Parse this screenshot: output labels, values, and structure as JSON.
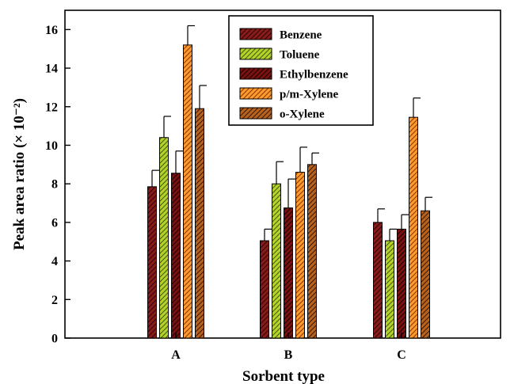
{
  "chart_data": {
    "type": "bar",
    "categories": [
      "A",
      "B",
      "C"
    ],
    "series": [
      {
        "name": "Benzene",
        "values": [
          7.85,
          5.05,
          6.0
        ],
        "errors": [
          0.85,
          0.6,
          0.7
        ],
        "color": "#8b1a1a",
        "hatch_color": "#2a0808"
      },
      {
        "name": "Toluene",
        "values": [
          10.4,
          8.0,
          5.05
        ],
        "errors": [
          1.1,
          1.15,
          0.6
        ],
        "color": "#b5d42a",
        "hatch_color": "#4a5a10"
      },
      {
        "name": "Ethylbenzene",
        "values": [
          8.55,
          6.75,
          5.65
        ],
        "errors": [
          1.15,
          1.5,
          0.75
        ],
        "color": "#7a1010",
        "hatch_color": "#1a0303"
      },
      {
        "name": "p/m-Xylene",
        "values": [
          15.2,
          8.6,
          11.45
        ],
        "errors": [
          1.0,
          1.3,
          1.0
        ],
        "color": "#ff9a2e",
        "hatch_color": "#8a3a00"
      },
      {
        "name": "o-Xylene",
        "values": [
          11.9,
          9.0,
          6.6
        ],
        "errors": [
          1.2,
          0.6,
          0.7
        ],
        "color": "#b8621e",
        "hatch_color": "#3a1a05"
      }
    ],
    "xlabel": "Sorbent type",
    "ylabel": "Peak area ratio (× 10⁻²)",
    "ylim": [
      0,
      17
    ],
    "yticks": [
      0,
      2,
      4,
      6,
      8,
      10,
      12,
      14,
      16
    ],
    "grid": false,
    "legend_position": "top-center"
  }
}
